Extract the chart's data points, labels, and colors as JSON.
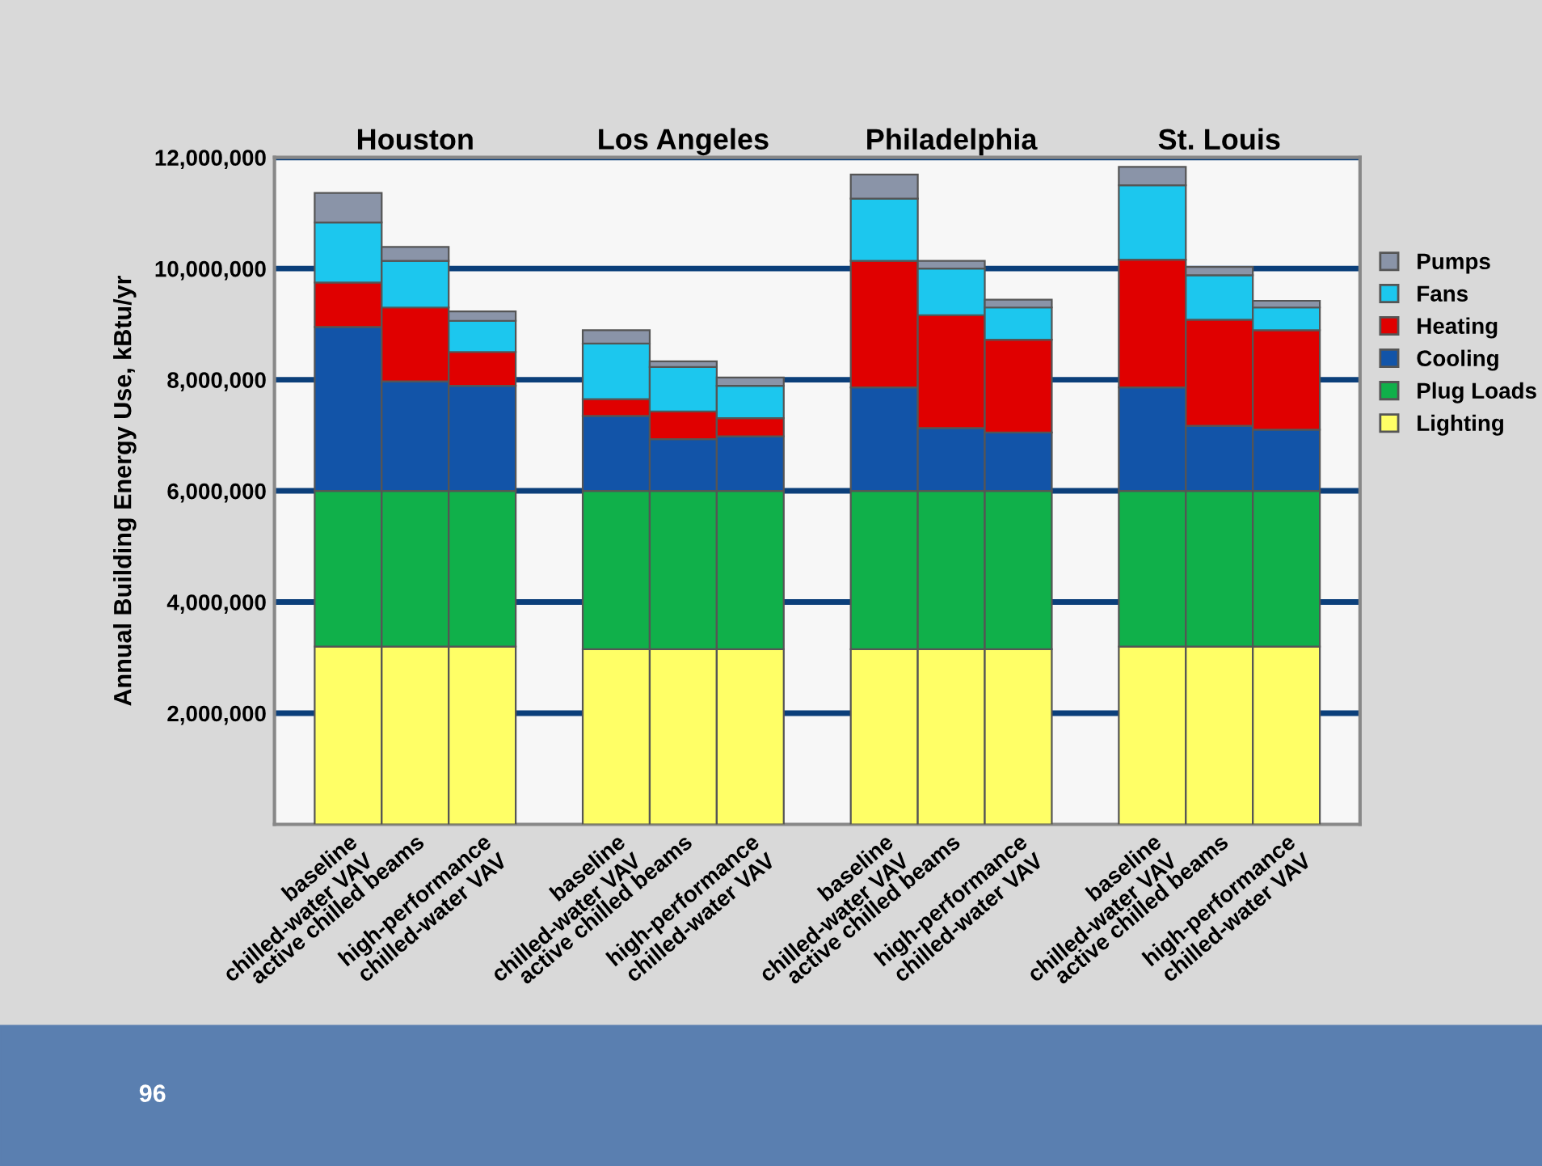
{
  "chart_data": {
    "type": "bar",
    "stacked": true,
    "ylabel": "Annual Building Energy Use, kBtu/yr",
    "categories": [
      "baseline\nchilled-water VAV",
      "active chilled beams",
      "high-performance\nchilled-water VAV",
      null,
      "baseline\nchilled-water VAV",
      "active chilled beams",
      "high-performance\nchilled-water VAV",
      null,
      "baseline\nchilled-water VAV",
      "active chilled beams",
      "high-performance\nchilled-water VAV",
      null,
      "baseline\nchilled-water VAV",
      "active chilled beams",
      "high-performance\nchilled-water VAV"
    ],
    "series": [
      {
        "name": "Lighting",
        "color": "#ffff66",
        "values": [
          3200000,
          3200000,
          3200000,
          null,
          3150000,
          3150000,
          3150000,
          null,
          3150000,
          3150000,
          3150000,
          null,
          3200000,
          3200000,
          3200000
        ]
      },
      {
        "name": "Plug Loads",
        "color": "#10b04a",
        "values": [
          2800000,
          2800000,
          2800000,
          null,
          2850000,
          2850000,
          2850000,
          null,
          2850000,
          2850000,
          2850000,
          null,
          2800000,
          2800000,
          2800000
        ]
      },
      {
        "name": "Cooling",
        "color": "#1254a8",
        "values": [
          2950000,
          1970000,
          1890000,
          null,
          1350000,
          930000,
          980000,
          null,
          1860000,
          1130000,
          1050000,
          null,
          1860000,
          1170000,
          1100000
        ]
      },
      {
        "name": "Heating",
        "color": "#e00000",
        "values": [
          800000,
          1330000,
          610000,
          null,
          300000,
          500000,
          330000,
          null,
          2280000,
          2030000,
          1670000,
          null,
          2300000,
          1910000,
          1790000
        ]
      },
      {
        "name": "Fans",
        "color": "#1cc7ee",
        "values": [
          1080000,
          840000,
          560000,
          null,
          1000000,
          800000,
          580000,
          null,
          1120000,
          840000,
          580000,
          null,
          1340000,
          800000,
          410000
        ]
      },
      {
        "name": "Pumps",
        "color": "#8a94a8",
        "values": [
          530000,
          250000,
          170000,
          null,
          240000,
          100000,
          150000,
          null,
          430000,
          140000,
          140000,
          null,
          330000,
          150000,
          120000
        ]
      }
    ],
    "ylim": [
      0,
      12000000
    ],
    "yticks": [
      {
        "value": 2000000,
        "label": "2,000,000"
      },
      {
        "value": 4000000,
        "label": "4,000,000"
      },
      {
        "value": 6000000,
        "label": "6,000,000"
      },
      {
        "value": 8000000,
        "label": "8,000,000"
      },
      {
        "value": 10000000,
        "label": "10,000,000"
      },
      {
        "value": 12000000,
        "label": "12,000,000"
      }
    ],
    "grid": "y",
    "legend": "right",
    "annotations": [
      "Houston",
      "Los Angeles",
      "Philadelphia",
      "St. Louis",
      "96"
    ]
  }
}
